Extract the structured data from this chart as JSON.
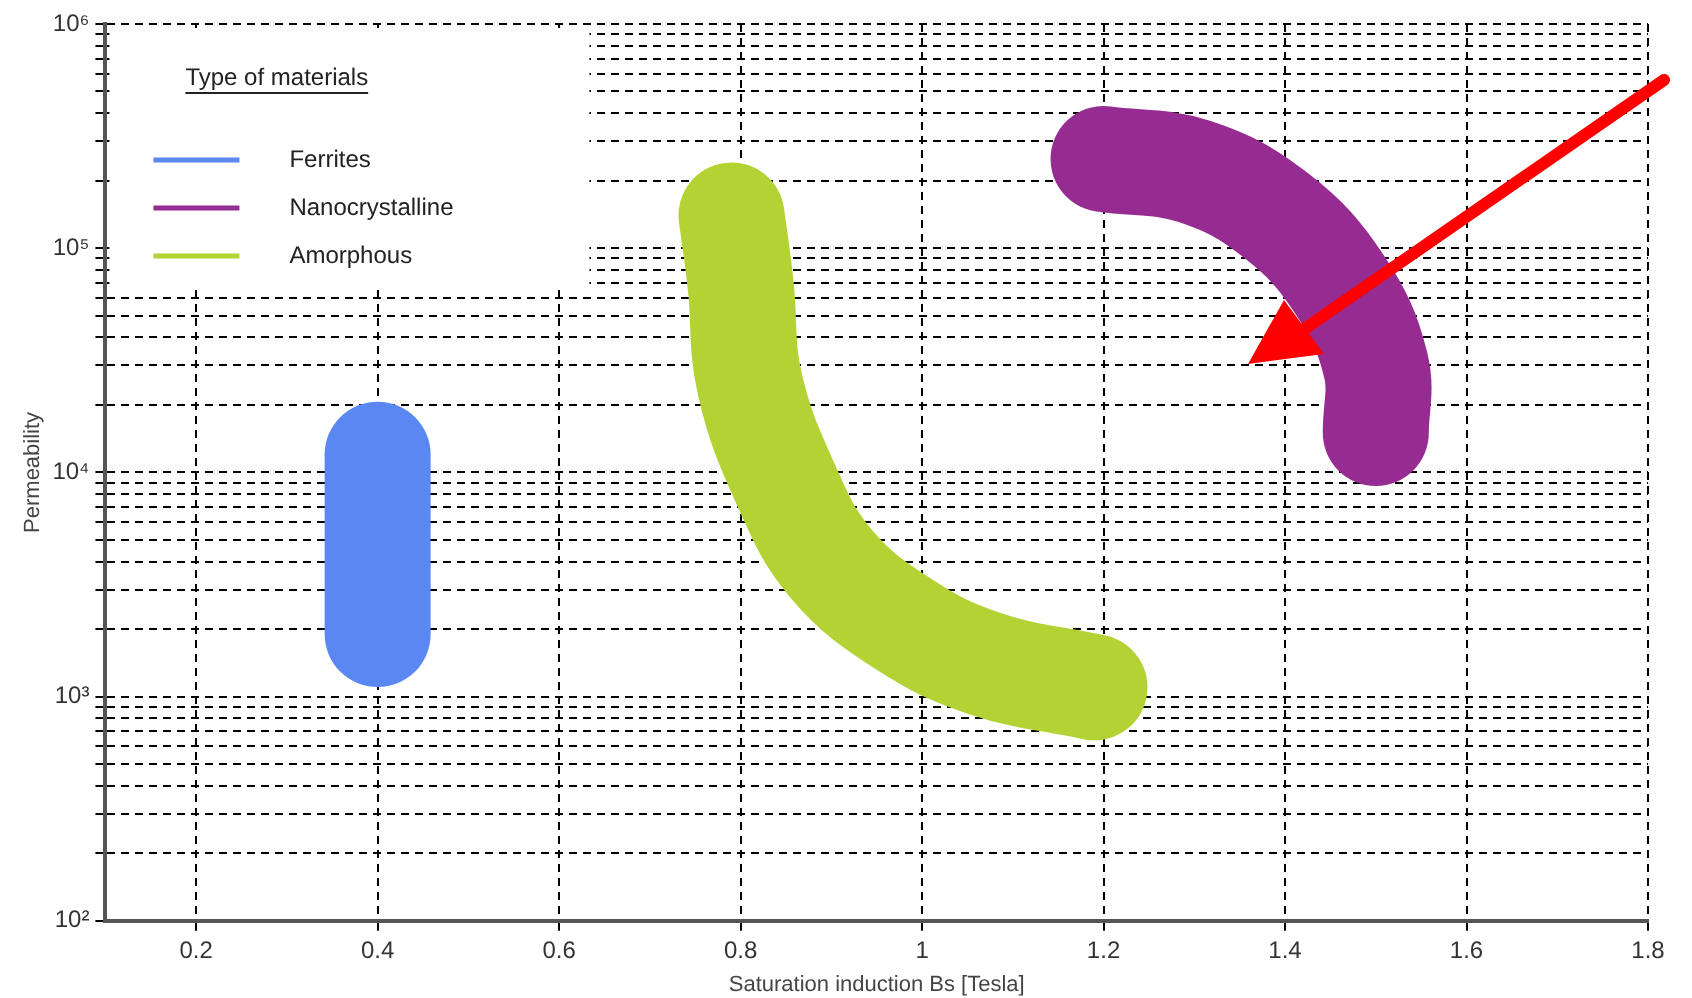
{
  "chart_data": {
    "type": "line",
    "xlabel": "Saturation induction Bs [Tesla]",
    "ylabel": "Permeability",
    "legend_title": "Type of materials",
    "legend": "top left",
    "grid": true,
    "marker": "none",
    "line_style": "solid",
    "log": "y",
    "xlim": [
      0.1,
      1.8
    ],
    "xticks": [
      0.2,
      0.4,
      0.6,
      0.8,
      1,
      1.2,
      1.4,
      1.6,
      1.8
    ],
    "ylim": [
      100,
      1000000
    ],
    "yticks": [
      {
        "value": 100,
        "label": "10²"
      },
      {
        "value": 200,
        "label": null
      },
      {
        "value": 300,
        "label": null
      },
      {
        "value": 400,
        "label": null
      },
      {
        "value": 500,
        "label": null
      },
      {
        "value": 600,
        "label": null
      },
      {
        "value": 700,
        "label": null
      },
      {
        "value": 800,
        "label": null
      },
      {
        "value": 900,
        "label": null
      },
      {
        "value": 1000,
        "label": "10³"
      },
      {
        "value": 2000,
        "label": null
      },
      {
        "value": 3000,
        "label": null
      },
      {
        "value": 4000,
        "label": null
      },
      {
        "value": 5000,
        "label": null
      },
      {
        "value": 6000,
        "label": null
      },
      {
        "value": 7000,
        "label": null
      },
      {
        "value": 8000,
        "label": null
      },
      {
        "value": 9000,
        "label": null
      },
      {
        "value": 10000,
        "label": "10⁴"
      },
      {
        "value": 20000,
        "label": null
      },
      {
        "value": 30000,
        "label": null
      },
      {
        "value": 40000,
        "label": null
      },
      {
        "value": 50000,
        "label": null
      },
      {
        "value": 60000,
        "label": null
      },
      {
        "value": 70000,
        "label": null
      },
      {
        "value": 80000,
        "label": null
      },
      {
        "value": 90000,
        "label": null
      },
      {
        "value": 100000,
        "label": "10⁵"
      },
      {
        "value": 200000,
        "label": null
      },
      {
        "value": 300000,
        "label": null
      },
      {
        "value": 400000,
        "label": null
      },
      {
        "value": 500000,
        "label": null
      },
      {
        "value": 600000,
        "label": null
      },
      {
        "value": 700000,
        "label": null
      },
      {
        "value": 800000,
        "label": null
      },
      {
        "value": 900000,
        "label": null
      },
      {
        "value": 1000000,
        "label": "10⁶"
      }
    ],
    "series": [
      {
        "name": "Ferrites",
        "color": "#5b87f2",
        "x": [
          0.4,
          0.4
        ],
        "values": [
          1900,
          12000
        ]
      },
      {
        "name": "Nanocrystalline",
        "color": "#962b92",
        "x": [
          1.2,
          1.3,
          1.39,
          1.46,
          1.5,
          1.5
        ],
        "values": [
          250000,
          220000,
          140000,
          69000,
          30000,
          15000
        ]
      },
      {
        "name": "Amorphous",
        "color": "#b3d334",
        "x": [
          0.79,
          0.8,
          0.81,
          0.85,
          0.9,
          0.98,
          1.07,
          1.19
        ],
        "values": [
          140000,
          69000,
          25000,
          8800,
          3900,
          2100,
          1400,
          1100
        ]
      }
    ]
  }
}
